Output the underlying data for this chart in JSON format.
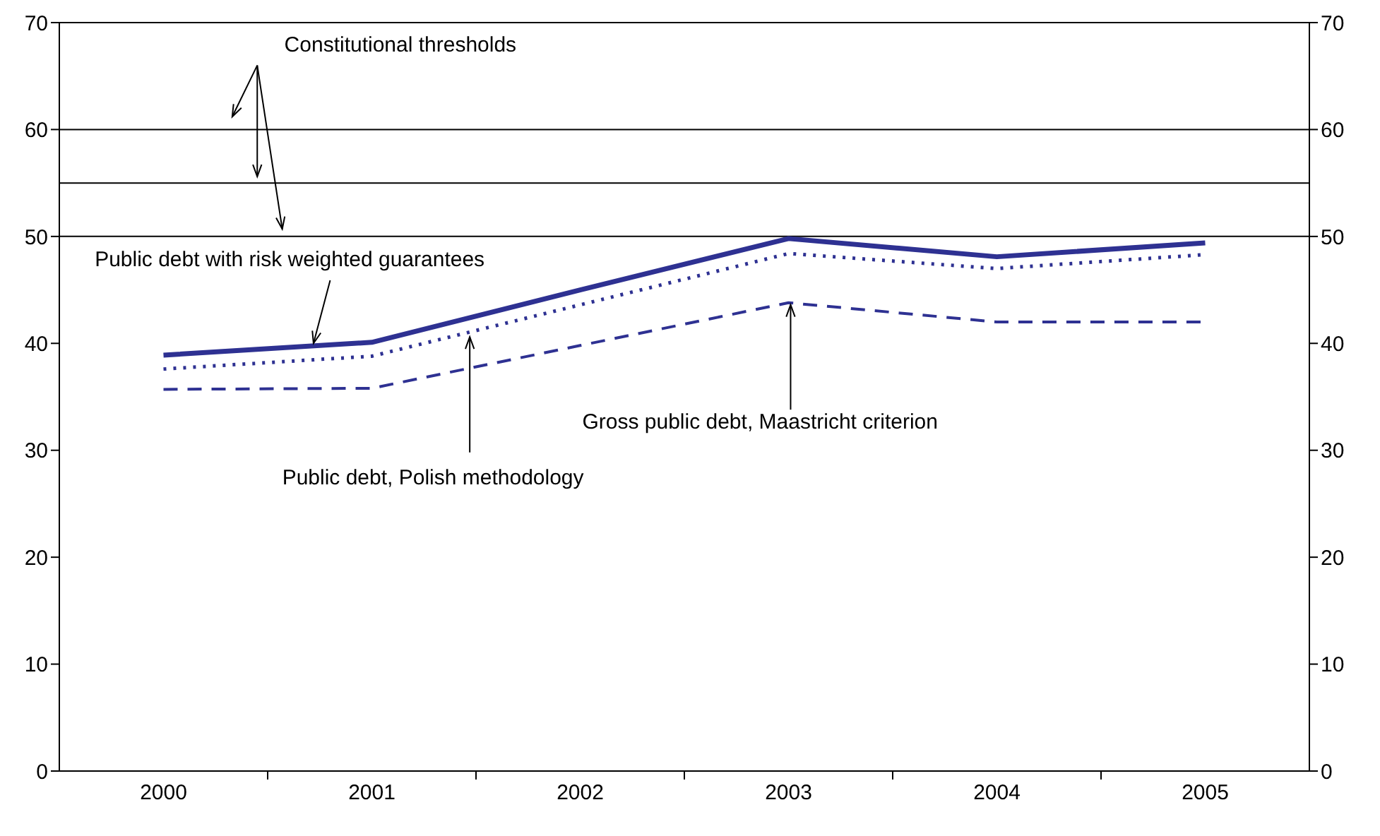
{
  "chart_data": {
    "type": "line",
    "categories": [
      "2000",
      "2001",
      "2002",
      "2003",
      "2004",
      "2005"
    ],
    "series": [
      {
        "name": "Public debt with risk weighted guarantees",
        "color": "#2e3192",
        "line_style": "solid",
        "values": [
          38.9,
          40.1,
          45.0,
          49.8,
          48.1,
          49.4
        ]
      },
      {
        "name": "Public debt, Polish methodology",
        "color": "#2e3192",
        "line_style": "dotted",
        "values": [
          37.6,
          38.8,
          43.6,
          48.4,
          47.0,
          48.3
        ]
      },
      {
        "name": "Gross public debt, Maastricht criterion",
        "color": "#2e3192",
        "line_style": "dashed",
        "values": [
          35.7,
          35.8,
          39.8,
          43.8,
          42.0,
          42.0
        ]
      }
    ],
    "annotations": [
      "Constitutional thresholds"
    ],
    "ref_lines": [
      {
        "axis": "y",
        "value": 50,
        "color": "#000000"
      },
      {
        "axis": "y",
        "value": 55,
        "color": "#000000"
      },
      {
        "axis": "y",
        "value": 60,
        "color": "#000000"
      }
    ],
    "ylim": [
      0,
      70
    ],
    "yticks": [
      0,
      10,
      20,
      30,
      40,
      50,
      60,
      70
    ],
    "y2lim": [
      0,
      70
    ],
    "y2ticks": [
      0,
      10,
      20,
      30,
      40,
      50,
      60,
      70
    ],
    "grid": false,
    "legend": false,
    "marker": "none"
  }
}
